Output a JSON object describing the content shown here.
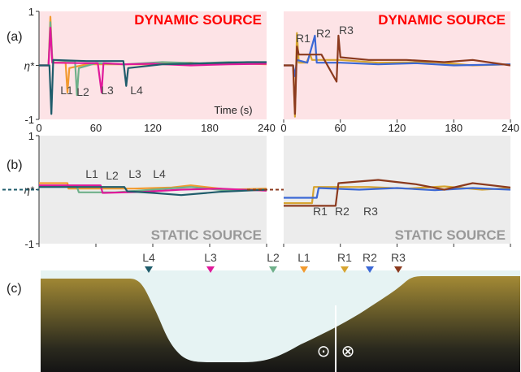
{
  "panel_labels": [
    "(a)",
    "(b)",
    "(c)"
  ],
  "colors": {
    "L4": "#1f5c6b",
    "L3": "#e0199b",
    "L2": "#6fb08a",
    "L1": "#f29a2e",
    "R1": "#d7a531",
    "R2": "#3b68d6",
    "R3": "#8b3a1e",
    "dynamic_bg": "#fde3e6",
    "static_bg": "#ececec",
    "dynamic_title": "#ff0000",
    "static_title": "#999999"
  },
  "chart_data": [
    {
      "id": "a-left",
      "type": "line",
      "title": "DYNAMIC SOURCE",
      "xlabel": "Time (s)",
      "xlim": [
        0,
        240
      ],
      "ylim": [
        -1,
        1
      ],
      "ytick_labels": [
        "1",
        "η*",
        "-1"
      ],
      "xtick_labels": [
        "0",
        "60",
        "120",
        "180",
        "240"
      ],
      "x_ticks_shown": false,
      "annotations": [
        "L1",
        "L2",
        "L3",
        "L4"
      ],
      "series": [
        {
          "name": "L1",
          "points": [
            [
              0,
              0
            ],
            [
              10,
              0
            ],
            [
              12,
              0.9
            ],
            [
              14,
              0.1
            ],
            [
              16,
              0.05
            ],
            [
              25,
              0.05
            ],
            [
              28,
              0.05
            ],
            [
              30,
              -0.5
            ],
            [
              32,
              -0.05
            ],
            [
              50,
              0.02
            ],
            [
              90,
              0.02
            ],
            [
              120,
              0.02
            ],
            [
              160,
              0.05
            ],
            [
              180,
              0.02
            ],
            [
              200,
              0.04
            ],
            [
              240,
              0.02
            ]
          ]
        },
        {
          "name": "L2",
          "points": [
            [
              0,
              0
            ],
            [
              10,
              0
            ],
            [
              12,
              0.8
            ],
            [
              14,
              0.1
            ],
            [
              30,
              0.08
            ],
            [
              38,
              0.08
            ],
            [
              40,
              -0.55
            ],
            [
              42,
              -0.05
            ],
            [
              60,
              0.04
            ],
            [
              90,
              0.02
            ],
            [
              130,
              0.06
            ],
            [
              170,
              0.04
            ],
            [
              200,
              0.06
            ],
            [
              240,
              0.05
            ]
          ]
        },
        {
          "name": "L3",
          "points": [
            [
              0,
              0
            ],
            [
              10,
              0
            ],
            [
              12,
              0.7
            ],
            [
              14,
              0.05
            ],
            [
              50,
              0.04
            ],
            [
              62,
              0.04
            ],
            [
              66,
              -0.5
            ],
            [
              68,
              0.04
            ],
            [
              90,
              0.02
            ],
            [
              120,
              0.03
            ],
            [
              160,
              0.0
            ],
            [
              200,
              0.02
            ],
            [
              240,
              0.03
            ]
          ]
        },
        {
          "name": "L4",
          "points": [
            [
              0,
              0
            ],
            [
              11,
              0
            ],
            [
              13,
              -0.9
            ],
            [
              15,
              0.1
            ],
            [
              16,
              0.1
            ],
            [
              50,
              0.08
            ],
            [
              89,
              0.08
            ],
            [
              92,
              -0.38
            ],
            [
              94,
              -0.05
            ],
            [
              130,
              0.02
            ],
            [
              180,
              0.04
            ],
            [
              220,
              0.06
            ],
            [
              240,
              0.06
            ]
          ]
        }
      ]
    },
    {
      "id": "a-right",
      "type": "line",
      "title": "DYNAMIC SOURCE",
      "xlabel": "",
      "xlim": [
        0,
        240
      ],
      "ylim": [
        -1,
        1
      ],
      "ytick_labels": [],
      "xtick_labels": [
        "0",
        "60",
        "120",
        "180",
        "240"
      ],
      "x_ticks_shown": true,
      "annotations": [
        "R1",
        "R2",
        "R3"
      ],
      "series": [
        {
          "name": "R1",
          "points": [
            [
              0,
              0
            ],
            [
              10,
              0
            ],
            [
              12,
              -0.95
            ],
            [
              14,
              0.6
            ],
            [
              16,
              0.05
            ],
            [
              24,
              0.05
            ],
            [
              28,
              0.2
            ],
            [
              30,
              0.1
            ],
            [
              60,
              0.1
            ],
            [
              100,
              0.05
            ],
            [
              160,
              0.06
            ],
            [
              200,
              0.0
            ],
            [
              240,
              0.02
            ]
          ]
        },
        {
          "name": "R2",
          "points": [
            [
              0,
              0
            ],
            [
              10,
              0
            ],
            [
              12,
              -0.2
            ],
            [
              14,
              0.1
            ],
            [
              25,
              0.05
            ],
            [
              33,
              0.55
            ],
            [
              35,
              0.05
            ],
            [
              60,
              0.05
            ],
            [
              100,
              0.02
            ],
            [
              140,
              0.04
            ],
            [
              180,
              0.0
            ],
            [
              240,
              0.02
            ]
          ]
        },
        {
          "name": "R3",
          "points": [
            [
              0,
              0
            ],
            [
              10,
              0
            ],
            [
              12,
              -0.9
            ],
            [
              14,
              0.35
            ],
            [
              16,
              0.2
            ],
            [
              40,
              0.2
            ],
            [
              56,
              -0.3
            ],
            [
              58,
              0.55
            ],
            [
              60,
              0.15
            ],
            [
              90,
              0.1
            ],
            [
              130,
              0.1
            ],
            [
              170,
              0.06
            ],
            [
              200,
              0.1
            ],
            [
              240,
              0.0
            ]
          ]
        }
      ]
    },
    {
      "id": "b-left",
      "type": "line",
      "title": "STATIC SOURCE",
      "xlabel": "",
      "xlim": [
        0,
        240
      ],
      "ylim": [
        -1,
        1
      ],
      "ytick_labels": [
        "1",
        "η*",
        "-1"
      ],
      "xtick_labels": [],
      "x_ticks_shown": true,
      "annotations": [
        "L1",
        "L2",
        "L3",
        "L4"
      ],
      "initial_dashed": {
        "color_key": "L4",
        "x": [
          -40,
          0
        ],
        "y": 0
      },
      "series": [
        {
          "name": "L1",
          "points": [
            [
              0,
              0.12
            ],
            [
              30,
              0.12
            ],
            [
              31,
              0.02
            ],
            [
              60,
              0.02
            ],
            [
              100,
              0.02
            ],
            [
              140,
              0.04
            ],
            [
              160,
              0.08
            ],
            [
              200,
              0.0
            ],
            [
              240,
              0.02
            ]
          ]
        },
        {
          "name": "L2",
          "points": [
            [
              0,
              0.05
            ],
            [
              40,
              0.05
            ],
            [
              42,
              -0.05
            ],
            [
              80,
              -0.05
            ],
            [
              120,
              0.0
            ],
            [
              160,
              0.05
            ],
            [
              200,
              -0.02
            ],
            [
              240,
              0.0
            ]
          ]
        },
        {
          "name": "L3",
          "points": [
            [
              0,
              0.08
            ],
            [
              65,
              0.08
            ],
            [
              67,
              -0.06
            ],
            [
              110,
              -0.04
            ],
            [
              150,
              0.0
            ],
            [
              190,
              0.02
            ],
            [
              240,
              -0.02
            ]
          ]
        },
        {
          "name": "L4",
          "points": [
            [
              0,
              0.05
            ],
            [
              90,
              0.05
            ],
            [
              93,
              -0.03
            ],
            [
              120,
              -0.06
            ],
            [
              150,
              -0.1
            ],
            [
              190,
              -0.04
            ],
            [
              240,
              0.0
            ]
          ]
        }
      ]
    },
    {
      "id": "b-right",
      "type": "line",
      "title": "STATIC SOURCE",
      "xlabel": "",
      "xlim": [
        0,
        240
      ],
      "ylim": [
        -1,
        1
      ],
      "ytick_labels": [],
      "xtick_labels": [],
      "x_ticks_shown": true,
      "annotations": [
        "R1",
        "R2",
        "R3"
      ],
      "initial_dashed": {
        "color_key": "R3",
        "x": [
          -40,
          0
        ],
        "y": 0
      },
      "series": [
        {
          "name": "R1",
          "points": [
            [
              0,
              -0.25
            ],
            [
              30,
              -0.25
            ],
            [
              32,
              0.05
            ],
            [
              90,
              0.05
            ],
            [
              130,
              0.02
            ],
            [
              170,
              0.06
            ],
            [
              210,
              0.0
            ],
            [
              240,
              0.03
            ]
          ]
        },
        {
          "name": "R2",
          "points": [
            [
              0,
              -0.15
            ],
            [
              35,
              -0.15
            ],
            [
              37,
              0.03
            ],
            [
              80,
              0.0
            ],
            [
              120,
              0.03
            ],
            [
              160,
              -0.01
            ],
            [
              200,
              0.03
            ],
            [
              240,
              0.0
            ]
          ]
        },
        {
          "name": "R3",
          "points": [
            [
              0,
              -0.3
            ],
            [
              55,
              -0.3
            ],
            [
              58,
              0.12
            ],
            [
              100,
              0.18
            ],
            [
              140,
              0.1
            ],
            [
              170,
              0.0
            ],
            [
              200,
              0.12
            ],
            [
              240,
              0.04
            ]
          ]
        }
      ]
    }
  ],
  "cross_section": {
    "markers": [
      "L4",
      "L3",
      "L2",
      "L1",
      "R1",
      "R2",
      "R3"
    ],
    "symbols": [
      "⊙",
      "⊗"
    ]
  }
}
